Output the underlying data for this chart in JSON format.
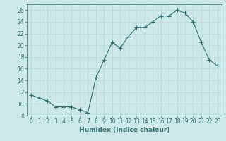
{
  "x": [
    0,
    1,
    2,
    3,
    4,
    5,
    6,
    7,
    8,
    9,
    10,
    11,
    12,
    13,
    14,
    15,
    16,
    17,
    18,
    19,
    20,
    21,
    22,
    23
  ],
  "y": [
    11.5,
    11.0,
    10.5,
    9.5,
    9.5,
    9.5,
    9.0,
    8.5,
    14.5,
    17.5,
    20.5,
    19.5,
    21.5,
    23.0,
    23.0,
    24.0,
    25.0,
    25.0,
    26.0,
    25.5,
    24.0,
    20.5,
    17.5,
    16.5
  ],
  "line_color": "#2d6e6e",
  "marker": "+",
  "marker_size": 4,
  "linewidth": 0.8,
  "background_color": "#cce8e8",
  "grid_color": "#b8d4d4",
  "xlabel": "Humidex (Indice chaleur)",
  "xlim": [
    -0.5,
    23.5
  ],
  "ylim": [
    8,
    27
  ],
  "yticks": [
    8,
    10,
    12,
    14,
    16,
    18,
    20,
    22,
    24,
    26
  ],
  "xticks": [
    0,
    1,
    2,
    3,
    4,
    5,
    6,
    7,
    8,
    9,
    10,
    11,
    12,
    13,
    14,
    15,
    16,
    17,
    18,
    19,
    20,
    21,
    22,
    23
  ],
  "tick_label_fontsize": 5.5,
  "xlabel_fontsize": 6.5
}
